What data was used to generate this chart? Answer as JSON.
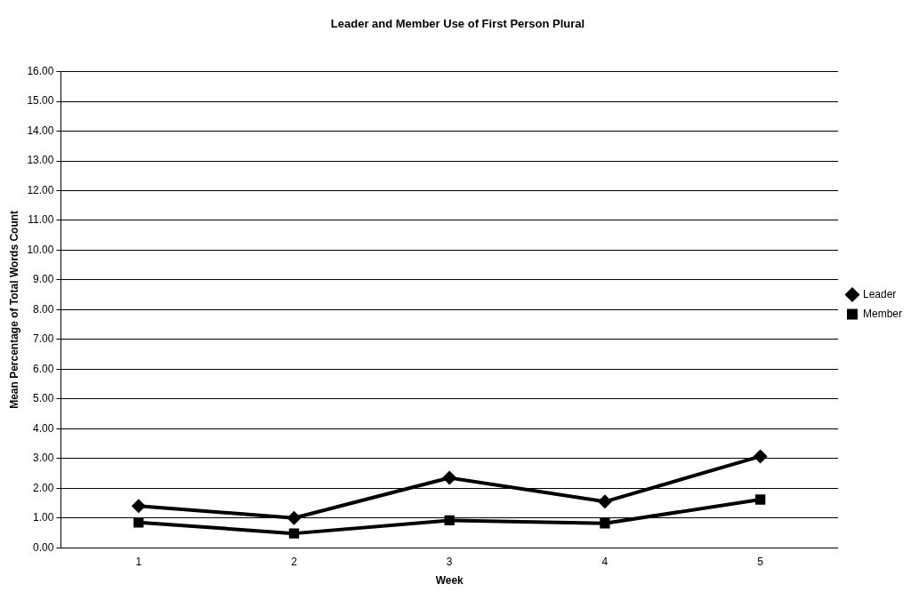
{
  "chart_data": {
    "type": "line",
    "title": "Leader and Member Use of First Person Plural",
    "xlabel": "Week",
    "ylabel": "Mean Percentage of Total Words Count",
    "categories": [
      "1",
      "2",
      "3",
      "4",
      "5"
    ],
    "series": [
      {
        "name": "Leader",
        "color": "#000000",
        "marker": "diamond",
        "values": [
          1.4,
          1.0,
          2.35,
          1.55,
          3.07
        ]
      },
      {
        "name": "Member",
        "color": "#000000",
        "marker": "square",
        "values": [
          0.85,
          0.48,
          0.92,
          0.82,
          1.62
        ]
      }
    ],
    "ylim": [
      0,
      16
    ],
    "yticks": [
      {
        "value": 0,
        "label": "0.00"
      },
      {
        "value": 1,
        "label": "1.00"
      },
      {
        "value": 2,
        "label": "2.00"
      },
      {
        "value": 3,
        "label": "3.00"
      },
      {
        "value": 4,
        "label": "4.00"
      },
      {
        "value": 5,
        "label": "5.00"
      },
      {
        "value": 6,
        "label": "6.00"
      },
      {
        "value": 7,
        "label": "7.00"
      },
      {
        "value": 8,
        "label": "8.00"
      },
      {
        "value": 9,
        "label": "9.00"
      },
      {
        "value": 10,
        "label": "10.00"
      },
      {
        "value": 11,
        "label": "11.00"
      },
      {
        "value": 12,
        "label": "12.00"
      },
      {
        "value": 13,
        "label": "13.00"
      },
      {
        "value": 14,
        "label": "14.00"
      },
      {
        "value": 15,
        "label": "15.00"
      },
      {
        "value": 16,
        "label": "16.00"
      }
    ],
    "grid": "y",
    "legend": "right",
    "line_style": "solid"
  }
}
